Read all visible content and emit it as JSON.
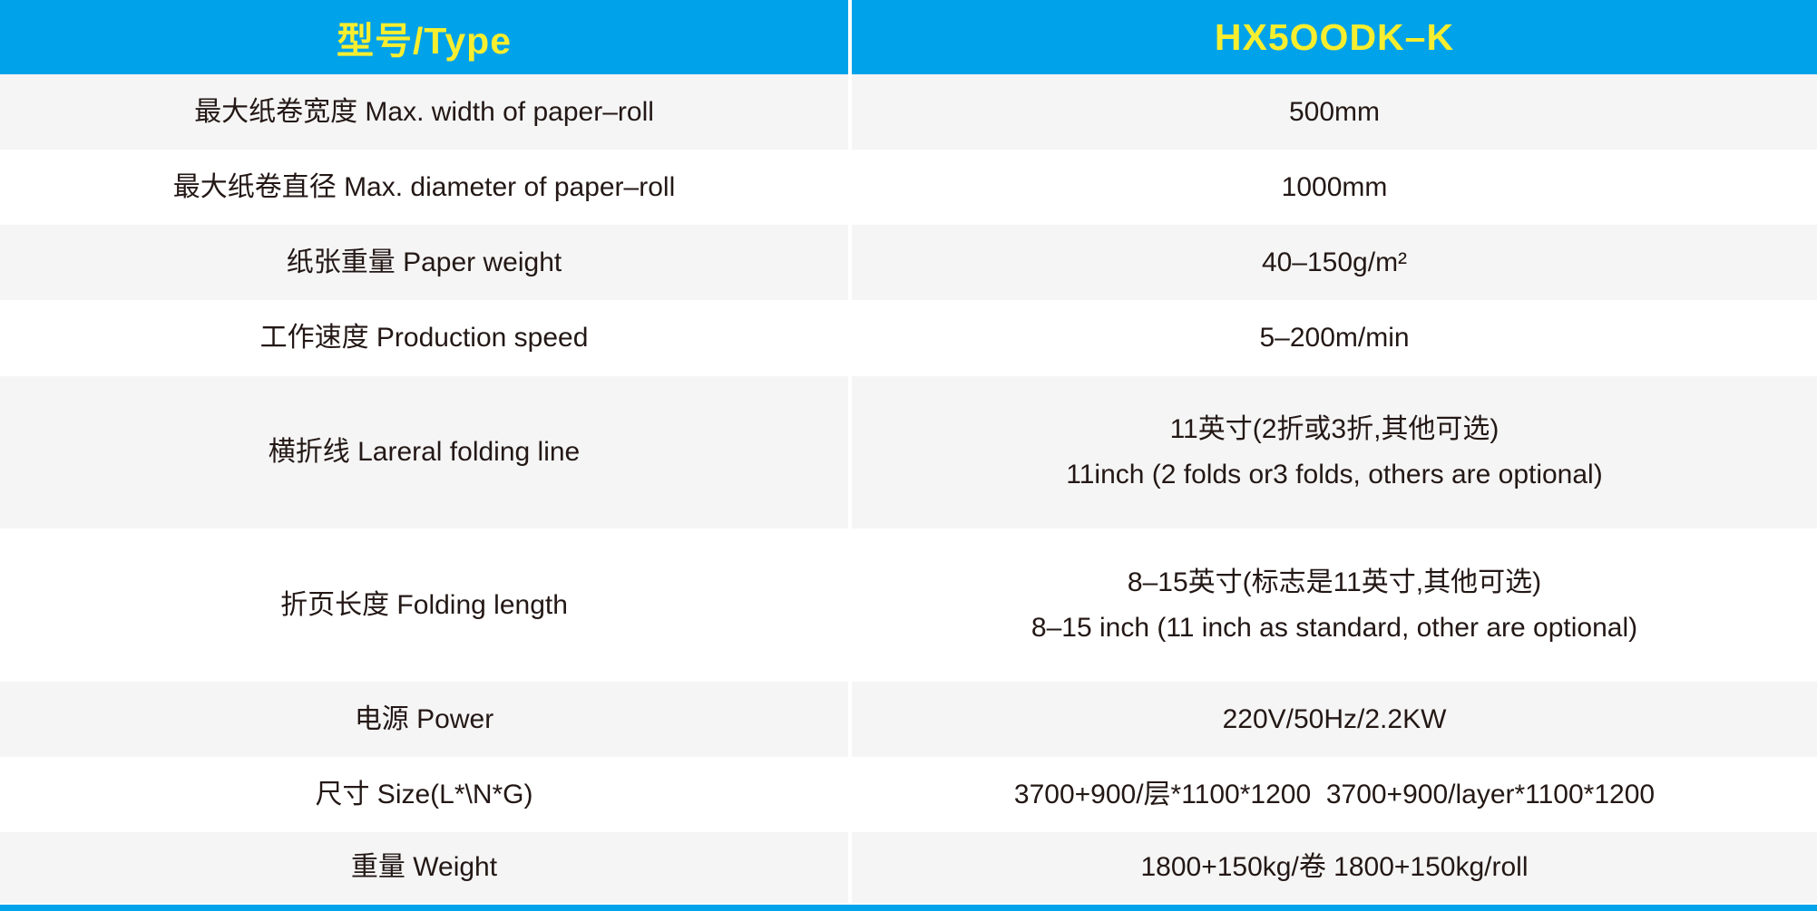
{
  "header": {
    "type_label": "型号/Type",
    "model": "HX5OODK–K"
  },
  "rows": [
    {
      "label": "最大纸卷宽度 Max. width of paper–roll",
      "values": [
        "500mm"
      ]
    },
    {
      "label": "最大纸卷直径 Max. diameter of paper–roll",
      "values": [
        "1000mm"
      ]
    },
    {
      "label": "纸张重量 Paper weight",
      "values": [
        "40–150g/m²"
      ]
    },
    {
      "label": "工作速度 Production speed",
      "values": [
        "5–200m/min"
      ]
    },
    {
      "label": "横折线 Lareral folding line",
      "values": [
        "11英寸(2折或3折,其他可选)",
        "11inch (2 folds or3 folds, others are optional)"
      ]
    },
    {
      "label": "折页长度 Folding length",
      "values": [
        "8–15英寸(标志是11英寸,其他可选)",
        "8–15 inch (11 inch as standard, other are optional)"
      ]
    },
    {
      "label": "电源 Power",
      "values": [
        "220V/50Hz/2.2KW"
      ]
    },
    {
      "label": "尺寸 Size(L*\\N*G)",
      "values": [
        "3700+900/层*1100*1200  3700+900/layer*1100*1200"
      ]
    },
    {
      "label": "重量 Weight",
      "values": [
        "1800+150kg/卷 1800+150kg/roll"
      ]
    }
  ],
  "colors": {
    "header_blue": "#00a2e9",
    "header_yellow": "#f7ee2f",
    "row_gray": "#f5f5f5",
    "row_white": "#ffffff",
    "text": "#231815",
    "accent_bar": "#00a2e9"
  }
}
